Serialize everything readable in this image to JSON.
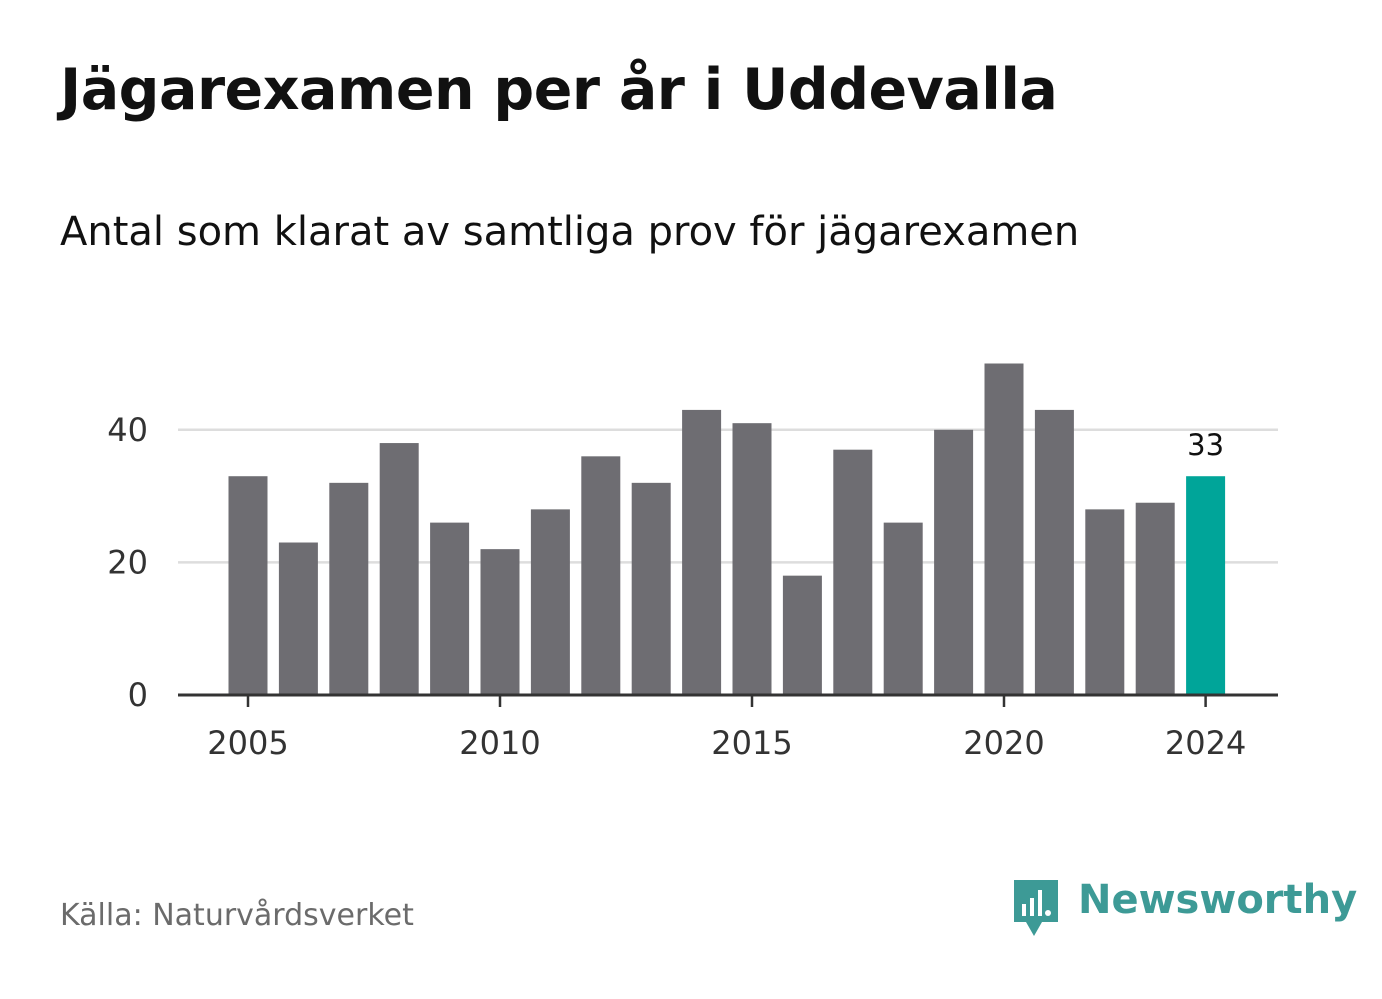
{
  "header": {
    "title": "Jägarexamen per år i Uddevalla",
    "subtitle": "Antal som klarat av samtliga prov för jägarexamen"
  },
  "footer": {
    "source": "Källa: Naturvårdsverket",
    "brand": "Newsworthy"
  },
  "colors": {
    "bar": "#6e6d72",
    "highlight": "#00a599",
    "grid": "#dddddd",
    "axis": "#333333",
    "tick_text": "#333333",
    "brand": "#3d9a96"
  },
  "chart_data": {
    "type": "bar",
    "title": "Jägarexamen per år i Uddevalla",
    "subtitle": "Antal som klarat av samtliga prov för jägarexamen",
    "xlabel": "",
    "ylabel": "",
    "categories": [
      "2005",
      "2006",
      "2007",
      "2008",
      "2009",
      "2010",
      "2011",
      "2012",
      "2013",
      "2014",
      "2015",
      "2016",
      "2017",
      "2018",
      "2019",
      "2020",
      "2021",
      "2022",
      "2023",
      "2024"
    ],
    "values": [
      33,
      23,
      32,
      38,
      26,
      22,
      28,
      36,
      32,
      43,
      41,
      18,
      37,
      26,
      40,
      50,
      43,
      28,
      29,
      33
    ],
    "highlight_category": "2024",
    "data_labels": [
      {
        "category": "2024",
        "text": "33"
      }
    ],
    "y_ticks": [
      0,
      20,
      40
    ],
    "x_ticks": [
      "2005",
      "2010",
      "2015",
      "2020",
      "2024"
    ],
    "ylim": [
      0,
      50
    ],
    "grid": true
  }
}
